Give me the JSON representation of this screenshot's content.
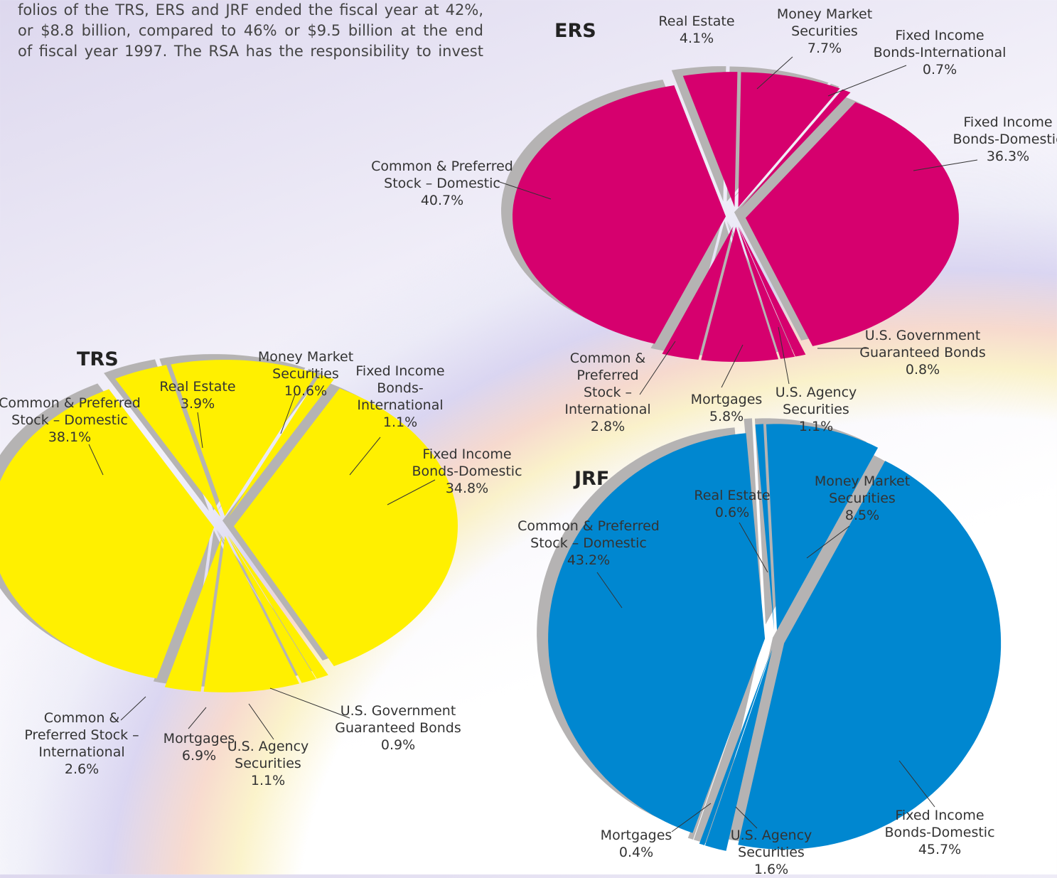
{
  "text": [
    "folios of the TRS, ERS and JRF ended the fiscal year at 42%,",
    "or $8.8 billion, compared to 46% or $9.5 billion at the end",
    "of fiscal year 1997. The RSA has the responsibility to invest"
  ],
  "chart_data": [
    {
      "type": "pie",
      "title": "ERS",
      "color": "#d6006e",
      "categories": [
        "Real Estate",
        "Money Market\nSecurities",
        "Fixed Income\nBonds-International",
        "Fixed Income\nBonds-Domestic",
        "U.S. Government\nGuaranteed Bonds",
        "U.S. Agency\nSecurities",
        "Mortgages",
        "Common &\nPreferred\nStock –\nInternational",
        "Common & Preferred\nStock – Domestic"
      ],
      "values": [
        4.1,
        7.7,
        0.7,
        36.3,
        0.8,
        1.1,
        5.8,
        2.8,
        40.7
      ],
      "value_labels": [
        "4.1%",
        "7.7%",
        "0.7%",
        "36.3%",
        "0.8%",
        "1.1%",
        "5.8%",
        "2.8%",
        "40.7%"
      ]
    },
    {
      "type": "pie",
      "title": "TRS",
      "color": "#fff000",
      "categories": [
        "Real Estate",
        "Money Market\nSecurities",
        "Fixed Income\nBonds-\nInternational",
        "Fixed Income\nBonds-Domestic",
        "U.S. Government\nGuaranteed Bonds",
        "U.S. Agency\nSecurities",
        "Mortgages",
        "Common &\nPreferred Stock –\nInternational",
        "Common & Preferred\nStock – Domestic"
      ],
      "values": [
        3.9,
        10.6,
        1.1,
        34.8,
        0.9,
        1.1,
        6.9,
        2.6,
        38.1
      ],
      "value_labels": [
        "3.9%",
        "10.6%",
        "1.1%",
        "34.8%",
        "0.9%",
        "1.1%",
        "6.9%",
        "2.6%",
        "38.1%"
      ]
    },
    {
      "type": "pie",
      "title": "JRF",
      "color": "#0087d0",
      "categories": [
        "Real Estate",
        "Money Market\nSecurities",
        "Fixed Income\nBonds-Domestic",
        "U.S. Agency\nSecurities",
        "Mortgages",
        "Common & Preferred\nStock – Domestic"
      ],
      "values": [
        0.6,
        8.5,
        45.7,
        1.6,
        0.4,
        43.2
      ],
      "value_labels": [
        "0.6%",
        "8.5%",
        "45.7%",
        "1.6%",
        "0.4%",
        "43.2%"
      ]
    }
  ]
}
